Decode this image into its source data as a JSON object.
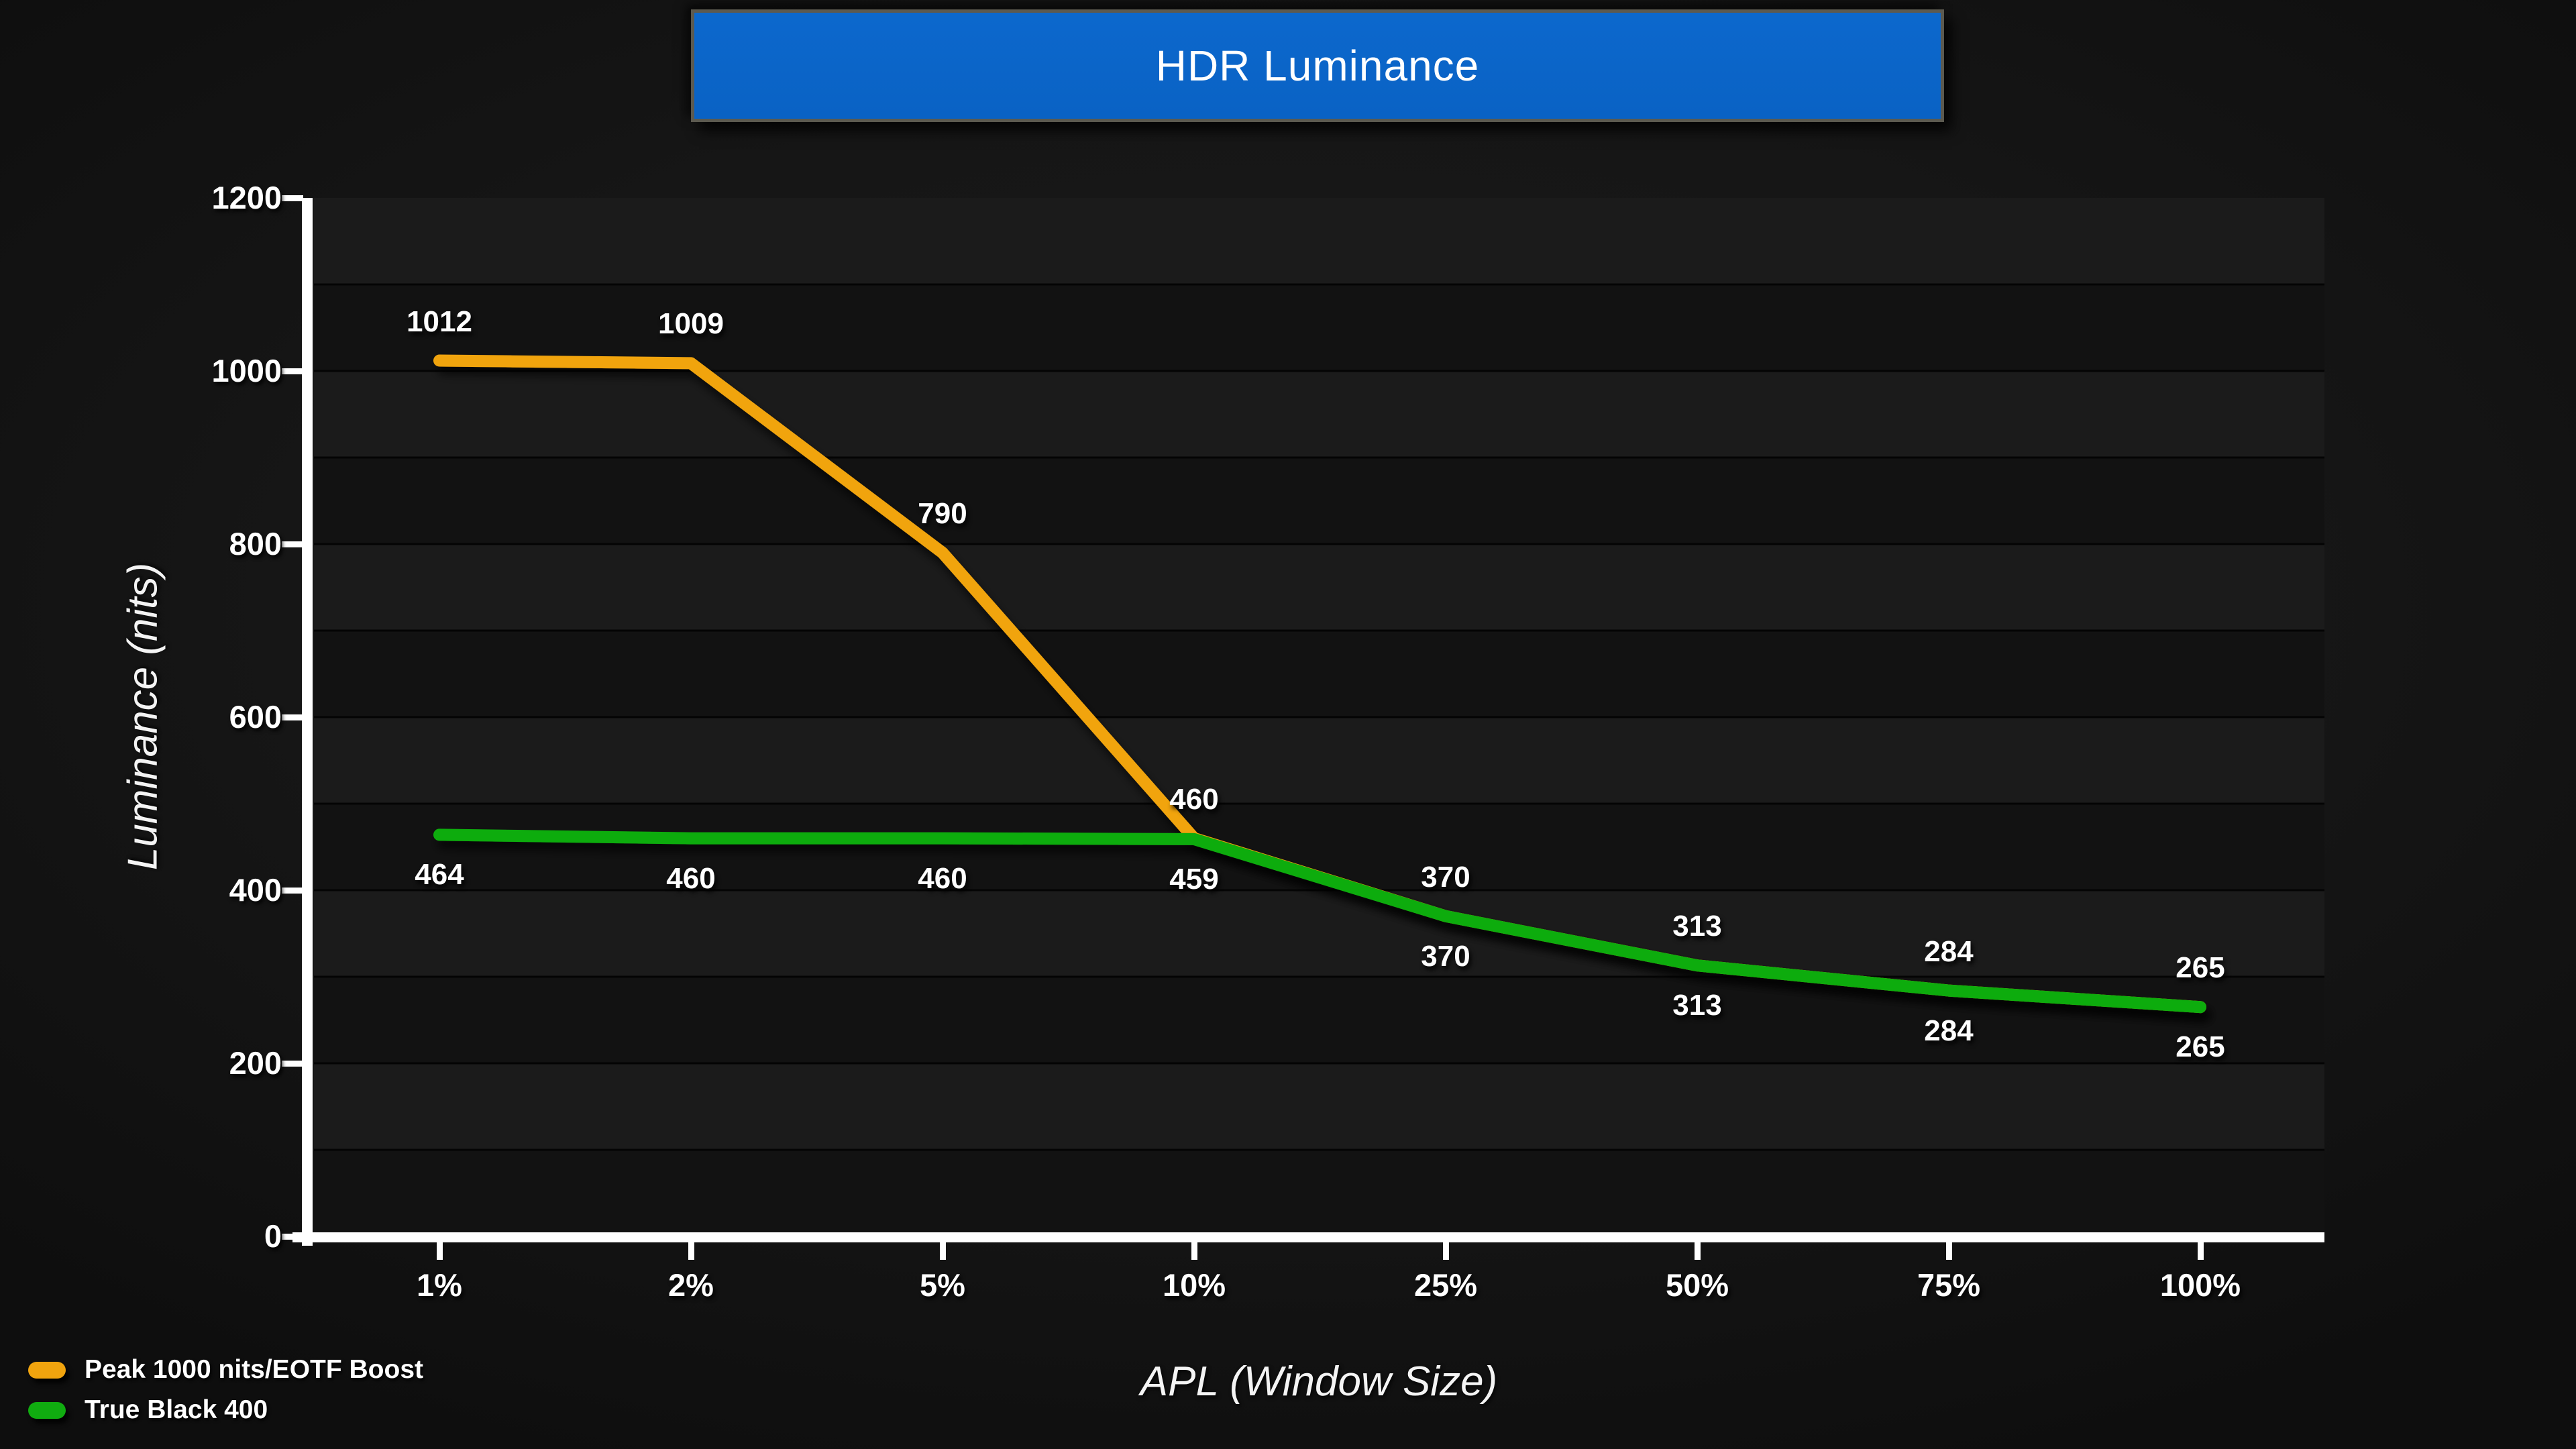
{
  "title": "HDR Luminance",
  "chart_data": {
    "type": "line",
    "title": "HDR Luminance",
    "xlabel": "APL (Window Size)",
    "ylabel": "Luminance (nits)",
    "categories": [
      "1%",
      "2%",
      "5%",
      "10%",
      "25%",
      "50%",
      "75%",
      "100%"
    ],
    "series": [
      {
        "name": "Peak 1000 nits/EOTF Boost",
        "color": "#f1a40e",
        "values": [
          1012,
          1009,
          790,
          460,
          370,
          313,
          284,
          265
        ],
        "label_position": "above"
      },
      {
        "name": "True Black 400",
        "color": "#10ac10",
        "values": [
          464,
          460,
          460,
          459,
          370,
          313,
          284,
          265
        ],
        "label_position": "below"
      }
    ],
    "ylim": [
      0,
      1200
    ],
    "y_ticks": [
      1200,
      1000,
      800,
      600,
      400,
      200,
      0
    ],
    "grid": "horizontal-every-100",
    "legend_position": "bottom-left"
  },
  "colors": {
    "title_bar": "#0a64c8",
    "title_border": "#5c5a50",
    "band_light": "#1b1b1b",
    "band_dark": "#121212",
    "gridline": "#040404",
    "axis": "#ffffff",
    "orange_series": "#f1a40e",
    "green_series": "#10ac10"
  }
}
